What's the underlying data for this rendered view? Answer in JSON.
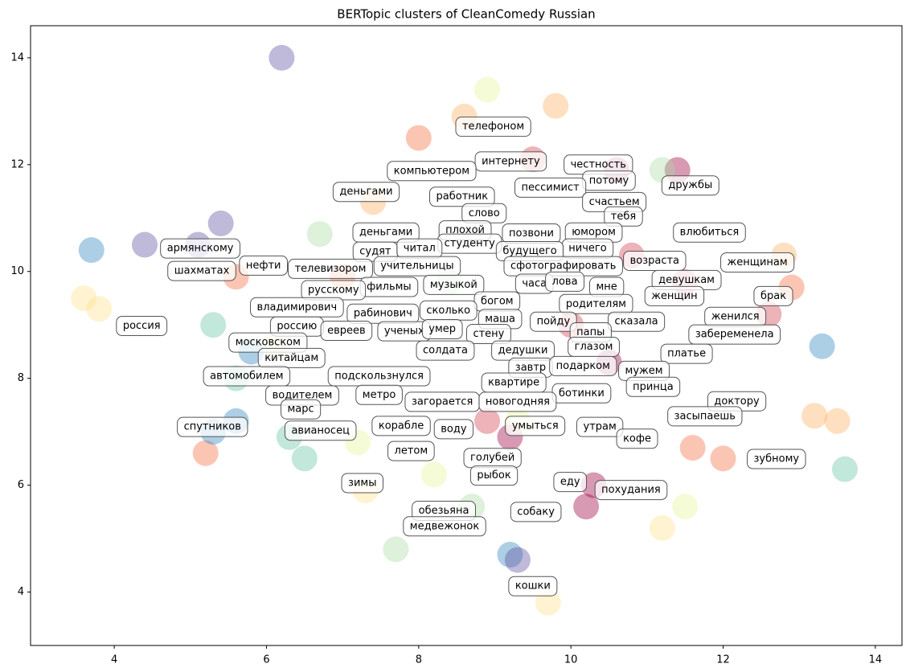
{
  "chart_data": {
    "type": "scatter",
    "title": "BERTopic clusters of CleanComedy Russian",
    "xlim": [
      2.9,
      14.35
    ],
    "ylim": [
      3.0,
      14.6
    ],
    "xticks": [
      4,
      6,
      8,
      10,
      12,
      14
    ],
    "yticks": [
      4,
      6,
      8,
      10,
      12,
      14
    ],
    "grid": false,
    "series": [
      {
        "color": "#9e0142",
        "x": [
          10.2,
          10.3,
          10.5,
          10.6,
          11.4,
          9.2
        ],
        "y": [
          5.6,
          6.0,
          8.3,
          11.9,
          11.9,
          6.9
        ]
      },
      {
        "color": "#d53e4f",
        "x": [
          10.8,
          11.5,
          12.6,
          10.0,
          9.5,
          8.9
        ],
        "y": [
          10.3,
          9.8,
          9.2,
          9.0,
          12.1,
          7.2
        ]
      },
      {
        "color": "#f46d43",
        "x": [
          12.0,
          11.6,
          5.2,
          8.0,
          7.0,
          5.6,
          12.9
        ],
        "y": [
          6.5,
          6.7,
          6.6,
          12.5,
          9.9,
          9.9,
          9.7
        ]
      },
      {
        "color": "#fdae61",
        "x": [
          13.2,
          13.5,
          12.8,
          8.6,
          9.8,
          7.4
        ],
        "y": [
          7.3,
          7.2,
          10.3,
          12.9,
          13.1,
          11.3
        ]
      },
      {
        "color": "#fee08b",
        "x": [
          3.8,
          3.6,
          9.7,
          7.3,
          11.2,
          6.1
        ],
        "y": [
          9.3,
          9.5,
          3.8,
          5.9,
          5.2,
          8.6
        ]
      },
      {
        "color": "#e6f598",
        "x": [
          8.9,
          7.2,
          9.3,
          11.5,
          8.2
        ],
        "y": [
          13.4,
          6.8,
          7.2,
          5.6,
          6.2
        ]
      },
      {
        "color": "#abdda4",
        "x": [
          8.7,
          6.7,
          11.2,
          8.4,
          7.7
        ],
        "y": [
          5.6,
          10.7,
          11.9,
          9.8,
          4.8
        ]
      },
      {
        "color": "#66c2a5",
        "x": [
          5.3,
          6.5,
          13.6,
          5.6,
          6.3
        ],
        "y": [
          9.0,
          6.5,
          6.3,
          8.0,
          6.9
        ]
      },
      {
        "color": "#3288bd",
        "x": [
          5.8,
          5.3,
          13.3,
          3.7,
          9.2,
          5.6
        ],
        "y": [
          8.5,
          7.0,
          8.6,
          10.4,
          4.7,
          7.2
        ]
      },
      {
        "color": "#5e4fa2",
        "x": [
          4.4,
          5.1,
          9.3,
          6.2,
          5.4
        ],
        "y": [
          10.5,
          10.5,
          4.6,
          14.0,
          10.9
        ]
      }
    ],
    "annotations": [
      {
        "text": "телефоном",
        "x": 8.98,
        "y": 12.71
      },
      {
        "text": "интернету",
        "x": 9.21,
        "y": 12.06
      },
      {
        "text": "честность",
        "x": 10.36,
        "y": 12.0
      },
      {
        "text": "потому",
        "x": 10.5,
        "y": 11.7
      },
      {
        "text": "дружбы",
        "x": 11.57,
        "y": 11.61
      },
      {
        "text": "компьютером",
        "x": 8.17,
        "y": 11.88
      },
      {
        "text": "пессимист",
        "x": 9.73,
        "y": 11.57
      },
      {
        "text": "счастьем",
        "x": 10.57,
        "y": 11.3
      },
      {
        "text": "деньгами",
        "x": 7.31,
        "y": 11.49
      },
      {
        "text": "работник",
        "x": 8.57,
        "y": 11.4
      },
      {
        "text": "тебя",
        "x": 10.69,
        "y": 11.03
      },
      {
        "text": "слово",
        "x": 8.86,
        "y": 11.09
      },
      {
        "text": "плохой",
        "x": 8.61,
        "y": 10.77
      },
      {
        "text": "позвони",
        "x": 9.48,
        "y": 10.71
      },
      {
        "text": "юмором",
        "x": 10.3,
        "y": 10.73
      },
      {
        "text": "влюбиться",
        "x": 11.82,
        "y": 10.73
      },
      {
        "text": "деньгами",
        "x": 7.57,
        "y": 10.73
      },
      {
        "text": "студенту",
        "x": 8.67,
        "y": 10.52
      },
      {
        "text": "ничего",
        "x": 10.22,
        "y": 10.43
      },
      {
        "text": "будущего",
        "x": 9.46,
        "y": 10.38
      },
      {
        "text": "армянскому",
        "x": 5.13,
        "y": 10.43
      },
      {
        "text": "судят",
        "x": 7.43,
        "y": 10.37
      },
      {
        "text": "читал",
        "x": 8.01,
        "y": 10.43
      },
      {
        "text": "возраста",
        "x": 11.1,
        "y": 10.2
      },
      {
        "text": "женщинам",
        "x": 12.45,
        "y": 10.17
      },
      {
        "text": "нефти",
        "x": 5.96,
        "y": 10.11
      },
      {
        "text": "телевизором",
        "x": 6.84,
        "y": 10.05
      },
      {
        "text": "учительницы",
        "x": 7.98,
        "y": 10.1
      },
      {
        "text": "сфотографировать",
        "x": 9.9,
        "y": 10.1
      },
      {
        "text": "шахматах",
        "x": 5.15,
        "y": 10.01
      },
      {
        "text": "девушкам",
        "x": 11.52,
        "y": 9.84
      },
      {
        "text": "фильмы",
        "x": 7.61,
        "y": 9.71
      },
      {
        "text": "музыкой",
        "x": 8.46,
        "y": 9.75
      },
      {
        "text": "часа",
        "x": 9.52,
        "y": 9.77
      },
      {
        "text": "лова",
        "x": 9.92,
        "y": 9.81
      },
      {
        "text": "мне",
        "x": 10.47,
        "y": 9.71
      },
      {
        "text": "русскому",
        "x": 6.88,
        "y": 9.65
      },
      {
        "text": "женщин",
        "x": 11.36,
        "y": 9.54
      },
      {
        "text": "брак",
        "x": 12.66,
        "y": 9.54
      },
      {
        "text": "богом",
        "x": 9.03,
        "y": 9.44
      },
      {
        "text": "родителям",
        "x": 10.33,
        "y": 9.39
      },
      {
        "text": "владимирович",
        "x": 6.4,
        "y": 9.33
      },
      {
        "text": "сколько",
        "x": 8.39,
        "y": 9.27
      },
      {
        "text": "рабинович",
        "x": 7.53,
        "y": 9.21
      },
      {
        "text": "маша",
        "x": 9.07,
        "y": 9.11
      },
      {
        "text": "женился",
        "x": 12.16,
        "y": 9.15
      },
      {
        "text": "россия",
        "x": 4.36,
        "y": 8.98
      },
      {
        "text": "россию",
        "x": 6.4,
        "y": 8.97
      },
      {
        "text": "пойду",
        "x": 9.77,
        "y": 9.06
      },
      {
        "text": "сказала",
        "x": 10.86,
        "y": 9.06
      },
      {
        "text": "евреев",
        "x": 7.05,
        "y": 8.89
      },
      {
        "text": "ученых",
        "x": 7.81,
        "y": 8.88
      },
      {
        "text": "умер",
        "x": 8.31,
        "y": 8.92
      },
      {
        "text": "стену",
        "x": 8.92,
        "y": 8.83
      },
      {
        "text": "папы",
        "x": 10.26,
        "y": 8.86
      },
      {
        "text": "забеременела",
        "x": 12.15,
        "y": 8.82
      },
      {
        "text": "московском",
        "x": 6.02,
        "y": 8.67
      },
      {
        "text": "солдата",
        "x": 8.35,
        "y": 8.52
      },
      {
        "text": "дедушки",
        "x": 9.37,
        "y": 8.52
      },
      {
        "text": "глазом",
        "x": 10.3,
        "y": 8.59
      },
      {
        "text": "платье",
        "x": 11.52,
        "y": 8.46
      },
      {
        "text": "китайцам",
        "x": 6.33,
        "y": 8.38
      },
      {
        "text": "завтр",
        "x": 9.47,
        "y": 8.2
      },
      {
        "text": "подарком",
        "x": 10.16,
        "y": 8.23
      },
      {
        "text": "мужем",
        "x": 10.96,
        "y": 8.14
      },
      {
        "text": "автомобилем",
        "x": 5.74,
        "y": 8.04
      },
      {
        "text": "подскользнулся",
        "x": 7.48,
        "y": 8.04
      },
      {
        "text": "квартире",
        "x": 9.25,
        "y": 7.92
      },
      {
        "text": "принца",
        "x": 11.08,
        "y": 7.84
      },
      {
        "text": "метро",
        "x": 7.48,
        "y": 7.69
      },
      {
        "text": "водителем",
        "x": 6.47,
        "y": 7.68
      },
      {
        "text": "ботинки",
        "x": 10.14,
        "y": 7.72
      },
      {
        "text": "загорается",
        "x": 8.31,
        "y": 7.56
      },
      {
        "text": "новогодняя",
        "x": 9.3,
        "y": 7.56
      },
      {
        "text": "доктору",
        "x": 12.18,
        "y": 7.57
      },
      {
        "text": "марс",
        "x": 6.45,
        "y": 7.42
      },
      {
        "text": "засыпаешь",
        "x": 11.76,
        "y": 7.29
      },
      {
        "text": "спутников",
        "x": 5.29,
        "y": 7.09
      },
      {
        "text": "корабле",
        "x": 7.77,
        "y": 7.11
      },
      {
        "text": "воду",
        "x": 8.46,
        "y": 7.05
      },
      {
        "text": "умыться",
        "x": 9.53,
        "y": 7.11
      },
      {
        "text": "утрам",
        "x": 10.38,
        "y": 7.09
      },
      {
        "text": "авианосец",
        "x": 6.71,
        "y": 7.02
      },
      {
        "text": "кофе",
        "x": 10.87,
        "y": 6.87
      },
      {
        "text": "летом",
        "x": 7.9,
        "y": 6.64
      },
      {
        "text": "голубей",
        "x": 8.97,
        "y": 6.51
      },
      {
        "text": "зубному",
        "x": 12.7,
        "y": 6.49
      },
      {
        "text": "рыбок",
        "x": 8.99,
        "y": 6.18
      },
      {
        "text": "зимы",
        "x": 7.26,
        "y": 6.04
      },
      {
        "text": "еду",
        "x": 9.99,
        "y": 6.06
      },
      {
        "text": "похудания",
        "x": 10.79,
        "y": 5.91
      },
      {
        "text": "обезьяна",
        "x": 8.33,
        "y": 5.52
      },
      {
        "text": "собаку",
        "x": 9.54,
        "y": 5.5
      },
      {
        "text": "медвежонок",
        "x": 8.34,
        "y": 5.23
      },
      {
        "text": "кошки",
        "x": 9.5,
        "y": 4.11
      }
    ]
  }
}
